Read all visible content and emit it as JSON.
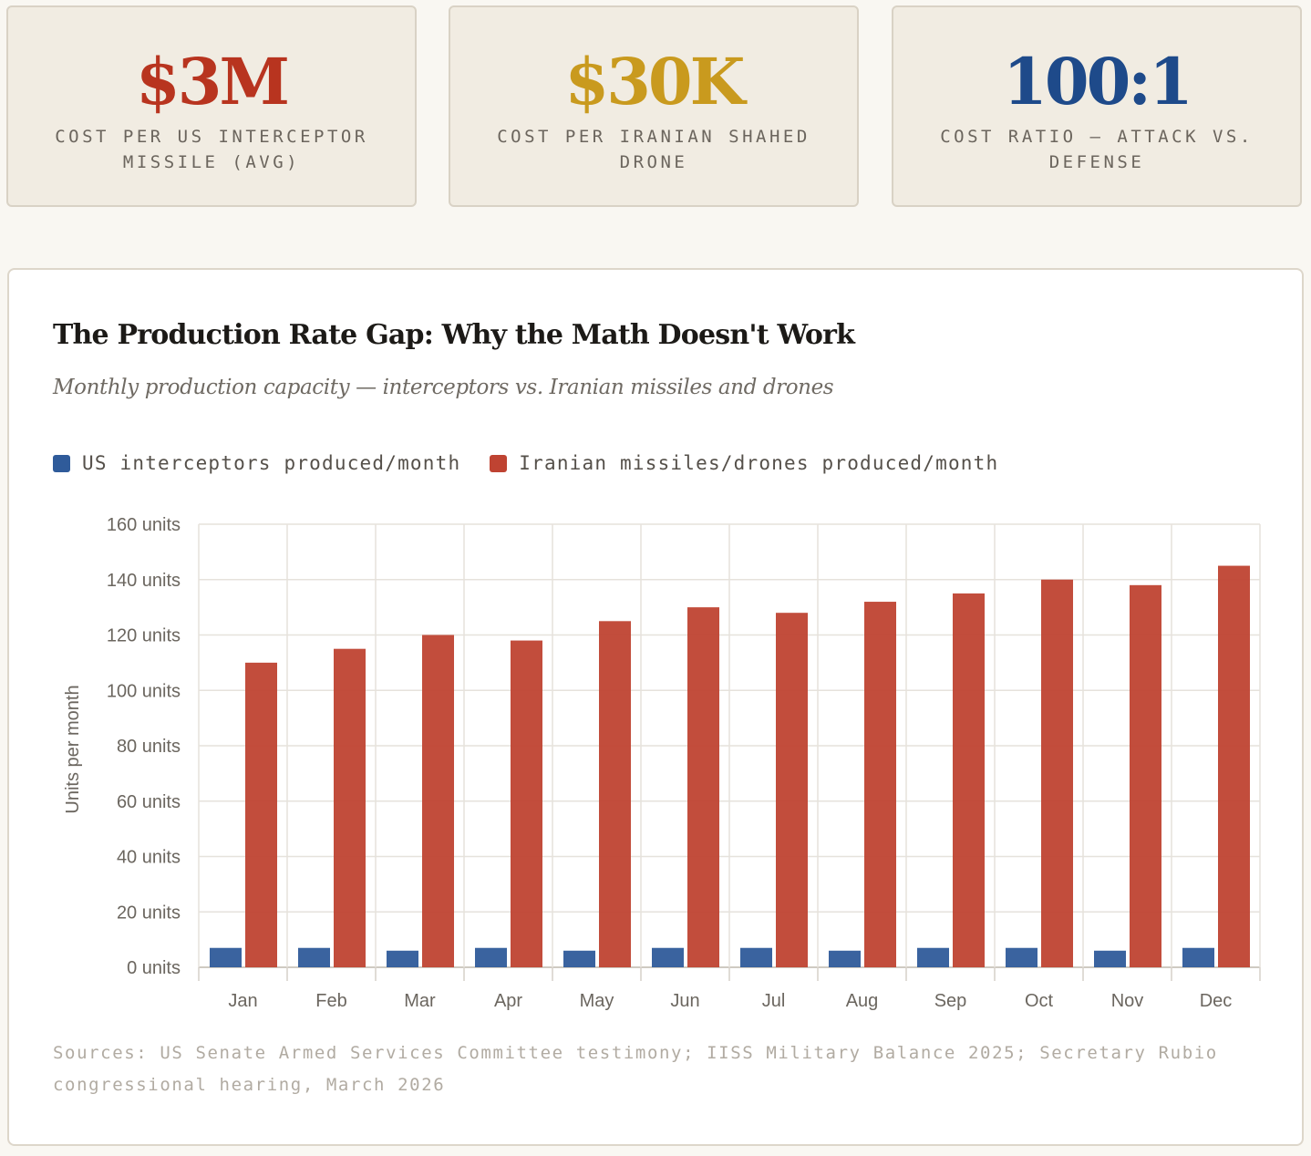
{
  "stats": [
    {
      "value": "$3M",
      "label": "COST PER US INTERCEPTOR MISSILE (AVG)",
      "color": "#b8341f"
    },
    {
      "value": "$30K",
      "label": "COST PER IRANIAN SHAHED DRONE",
      "color": "#c99a1e"
    },
    {
      "value": "100:1",
      "label": "COST RATIO — ATTACK VS. DEFENSE",
      "color": "#1e4a8a"
    }
  ],
  "chart": {
    "title": "The Production Rate Gap: Why the Math Doesn't Work",
    "subtitle": "Monthly production capacity — interceptors vs. Iranian missiles and drones",
    "sources": "Sources: US Senate Armed Services Committee testimony; IISS Military Balance 2025; Secretary Rubio congressional hearing, March 2026"
  },
  "chart_data": {
    "type": "bar",
    "categories": [
      "Jan",
      "Feb",
      "Mar",
      "Apr",
      "May",
      "Jun",
      "Jul",
      "Aug",
      "Sep",
      "Oct",
      "Nov",
      "Dec"
    ],
    "series": [
      {
        "name": "US interceptors produced/month",
        "color": "#2f5b9a",
        "values": [
          7,
          7,
          6,
          7,
          6,
          7,
          7,
          6,
          7,
          7,
          6,
          7
        ]
      },
      {
        "name": "Iranian missiles/drones produced/month",
        "color": "#bf4332",
        "values": [
          110,
          115,
          120,
          118,
          125,
          130,
          128,
          132,
          135,
          140,
          138,
          145
        ]
      }
    ],
    "ylabel": "Units per month",
    "ylim": [
      0,
      160
    ],
    "yticks": [
      0,
      20,
      40,
      60,
      80,
      100,
      120,
      140,
      160
    ],
    "ytick_suffix": " units",
    "grid": true,
    "legend": "top-left"
  }
}
